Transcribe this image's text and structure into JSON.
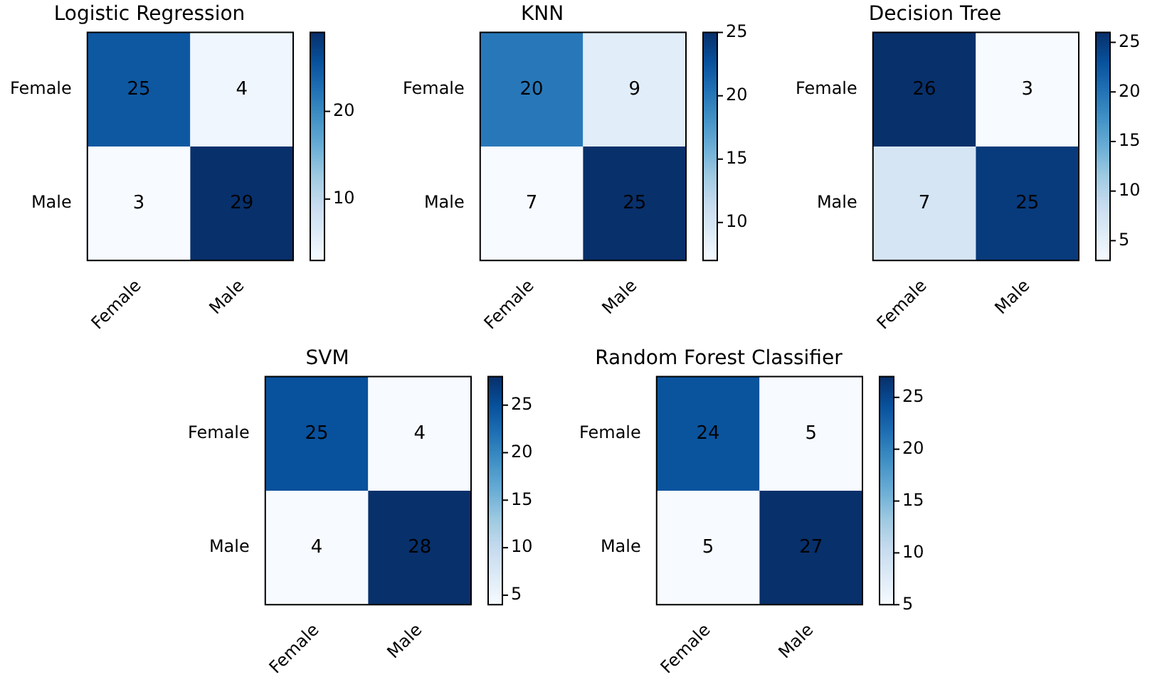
{
  "chart_data": [
    {
      "type": "heatmap",
      "title": "Logistic Regression",
      "categories": [
        "Female",
        "Male"
      ],
      "y_categories": [
        "Female",
        "Male"
      ],
      "cells": [
        [
          25,
          4
        ],
        [
          3,
          29
        ]
      ],
      "clim": [
        3,
        29
      ],
      "cticks": [
        10,
        20
      ],
      "data_labels": true
    },
    {
      "type": "heatmap",
      "title": "KNN",
      "categories": [
        "Female",
        "Male"
      ],
      "y_categories": [
        "Female",
        "Male"
      ],
      "cells": [
        [
          20,
          9
        ],
        [
          7,
          25
        ]
      ],
      "clim": [
        7,
        25
      ],
      "cticks": [
        10,
        15,
        20,
        25
      ],
      "data_labels": true
    },
    {
      "type": "heatmap",
      "title": "Decision Tree",
      "categories": [
        "Female",
        "Male"
      ],
      "y_categories": [
        "Female",
        "Male"
      ],
      "cells": [
        [
          26,
          3
        ],
        [
          7,
          25
        ]
      ],
      "clim": [
        3,
        26
      ],
      "cticks": [
        5,
        10,
        15,
        20,
        25
      ],
      "data_labels": true
    },
    {
      "type": "heatmap",
      "title": "SVM",
      "categories": [
        "Female",
        "Male"
      ],
      "y_categories": [
        "Female",
        "Male"
      ],
      "cells": [
        [
          25,
          4
        ],
        [
          4,
          28
        ]
      ],
      "clim": [
        4,
        28
      ],
      "cticks": [
        5,
        10,
        15,
        20,
        25
      ],
      "data_labels": true
    },
    {
      "type": "heatmap",
      "title": "Random Forest Classifier",
      "categories": [
        "Female",
        "Male"
      ],
      "y_categories": [
        "Female",
        "Male"
      ],
      "cells": [
        [
          24,
          5
        ],
        [
          5,
          27
        ]
      ],
      "clim": [
        5,
        27
      ],
      "cticks": [
        5,
        10,
        15,
        20,
        25
      ],
      "data_labels": true
    }
  ]
}
